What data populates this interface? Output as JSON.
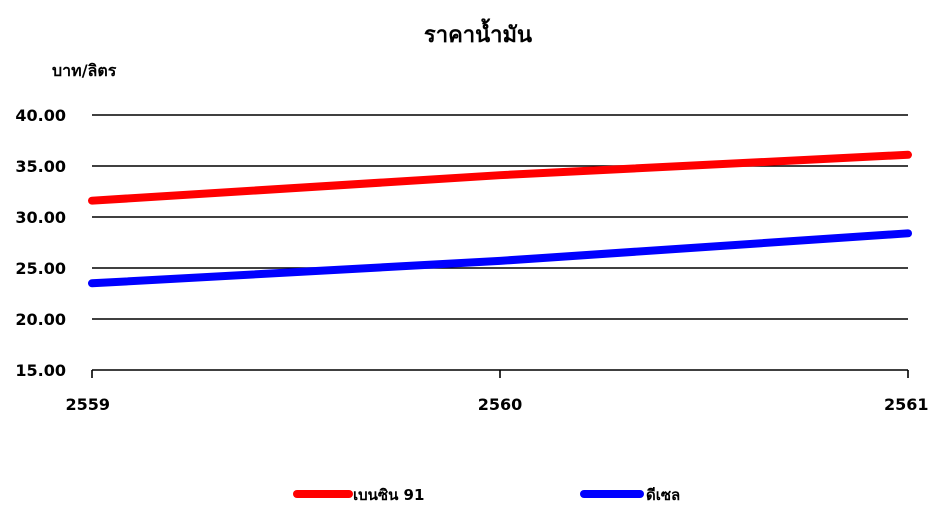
{
  "chart_data": {
    "type": "line",
    "title": "ราคาน้ำมัน",
    "xlabel": "",
    "ylabel": "บาท/ลิตร",
    "categories": [
      "2559",
      "2560",
      "2561"
    ],
    "ylim": [
      15,
      40
    ],
    "yticks": [
      "15.00",
      "20.00",
      "25.00",
      "30.00",
      "35.00",
      "40.00"
    ],
    "grid": true,
    "legend_position": "bottom",
    "series": [
      {
        "name": "เบนซิน 91",
        "values": [
          31.6,
          34.1,
          36.1
        ],
        "color": "#ff0000"
      },
      {
        "name": "ดีเซล",
        "values": [
          23.5,
          25.7,
          28.4
        ],
        "color": "#0000ff"
      }
    ]
  }
}
